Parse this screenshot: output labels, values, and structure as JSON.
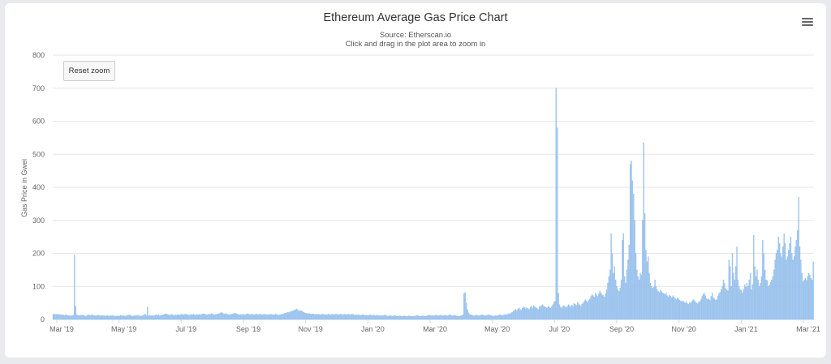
{
  "chart": {
    "title": "Ethereum Average Gas Price Chart",
    "subtitle": "Source: Etherscan.io",
    "hint": "Click and drag in the plot area to zoom in",
    "reset_zoom_label": "Reset zoom",
    "menu_icon": "hamburger-menu-icon"
  },
  "colors": {
    "bar": "#a9c8ec",
    "bar_edge": "#7cb5ec",
    "grid": "#e6e6e6",
    "axis": "#ccd6eb"
  },
  "chart_data": {
    "type": "bar",
    "title": "Ethereum Average Gas Price Chart",
    "subtitle": "Source: Etherscan.io",
    "ylabel": "Gas Price in Gwei",
    "xlabel": "",
    "ylim": [
      0,
      800
    ],
    "yticks": [
      0,
      100,
      200,
      300,
      400,
      500,
      600,
      700,
      800
    ],
    "xticks": [
      "Mar '19",
      "May '19",
      "Jul '19",
      "Sep '19",
      "Nov '19",
      "Jan '20",
      "Mar '20",
      "May '20",
      "Jul '20",
      "Sep '20",
      "Nov '20",
      "Jan '21",
      "Mar '21"
    ],
    "grid": true,
    "x_start": "2019-03-01",
    "series": [
      {
        "values": [
          15,
          17,
          15,
          16,
          14,
          16,
          14,
          15,
          13,
          14,
          12,
          14,
          13,
          12,
          12,
          11,
          11,
          12,
          13,
          195,
          40,
          14,
          13,
          12,
          12,
          13,
          12,
          13,
          11,
          10,
          12,
          13,
          14,
          12,
          13,
          14,
          12,
          12,
          11,
          12,
          13,
          12,
          11,
          12,
          11,
          12,
          11,
          10,
          12,
          11,
          10,
          12,
          11,
          12,
          10,
          11,
          10,
          10,
          11,
          10,
          12,
          11,
          12,
          11,
          10,
          11,
          12,
          13,
          14,
          12,
          11,
          10,
          11,
          12,
          11,
          13,
          12,
          11,
          10,
          11,
          12,
          14,
          16,
          12,
          38,
          11,
          12,
          11,
          12,
          11,
          12,
          13,
          14,
          12,
          15,
          11,
          12,
          13,
          14,
          15,
          16,
          17,
          15,
          14,
          13,
          14,
          15,
          13,
          12,
          14,
          13,
          15,
          14,
          13,
          16,
          15,
          14,
          15,
          16,
          15,
          14,
          13,
          14,
          15,
          14,
          16,
          14,
          13,
          15,
          14,
          15,
          14,
          15,
          16,
          17,
          16,
          15,
          14,
          15,
          16,
          15,
          18,
          16,
          15,
          14,
          15,
          16,
          17,
          18,
          20,
          21,
          19,
          17,
          16,
          18,
          16,
          15,
          14,
          15,
          16,
          17,
          18,
          19,
          18,
          16,
          15,
          14,
          15,
          14,
          16,
          15,
          14,
          16,
          17,
          16,
          15,
          14,
          16,
          15,
          14,
          15,
          16,
          15,
          14,
          16,
          15,
          14,
          15,
          16,
          15,
          14,
          15,
          14,
          15,
          16,
          14,
          15,
          14,
          16,
          15,
          14,
          13,
          14,
          15,
          16,
          17,
          18,
          19,
          20,
          22,
          21,
          23,
          24,
          25,
          26,
          28,
          30,
          32,
          28,
          25,
          27,
          26,
          24,
          22,
          20,
          19,
          18,
          17,
          18,
          17,
          16,
          17,
          16,
          15,
          16,
          15,
          16,
          15,
          14,
          15,
          16,
          15,
          14,
          15,
          14,
          16,
          15,
          14,
          15,
          16,
          14,
          15,
          16,
          15,
          14,
          15,
          16,
          15,
          14,
          15,
          16,
          14,
          15,
          16,
          15,
          14,
          16,
          15,
          14,
          13,
          14,
          13,
          14,
          13,
          12,
          13,
          14,
          13,
          12,
          13,
          12,
          13,
          14,
          13,
          12,
          13,
          12,
          11,
          12,
          13,
          12,
          11,
          12,
          11,
          12,
          13,
          12,
          11,
          10,
          11,
          12,
          11,
          10,
          11,
          12,
          11,
          10,
          9,
          10,
          11,
          10,
          9,
          10,
          11,
          10,
          9,
          10,
          11,
          10,
          9,
          10,
          9,
          10,
          11,
          12,
          11,
          10,
          9,
          10,
          11,
          10,
          9,
          10,
          11,
          12,
          13,
          12,
          11,
          12,
          11,
          12,
          13,
          12,
          11,
          12,
          13,
          12,
          11,
          12,
          13,
          12,
          11,
          12,
          14,
          13,
          12,
          11,
          12,
          13,
          11,
          10,
          9,
          10,
          11,
          12,
          14,
          78,
          82,
          50,
          30,
          20,
          16,
          14,
          13,
          12,
          11,
          12,
          13,
          12,
          11,
          12,
          13,
          14,
          13,
          12,
          11,
          12,
          13,
          14,
          13,
          12,
          11,
          10,
          11,
          12,
          11,
          12,
          13,
          14,
          13,
          12,
          13,
          14,
          15,
          14,
          16,
          18,
          17,
          20,
          22,
          25,
          28,
          30,
          26,
          32,
          35,
          30,
          28,
          34,
          38,
          36,
          32,
          35,
          33,
          30,
          36,
          40,
          35,
          42,
          38,
          36,
          34,
          30,
          38,
          40,
          42,
          45,
          40,
          38,
          36,
          35,
          40,
          37,
          34,
          38,
          45,
          52,
          55,
          700,
          580,
          80,
          45,
          38,
          35,
          40,
          42,
          38,
          36,
          40,
          45,
          42,
          38,
          44,
          40,
          48,
          46,
          42,
          52,
          48,
          44,
          40,
          46,
          50,
          55,
          60,
          56,
          52,
          58,
          62,
          70,
          75,
          72,
          68,
          80,
          74,
          70,
          78,
          86,
          80,
          75,
          72,
          68,
          78,
          90,
          110,
          130,
          150,
          260,
          200,
          140,
          160,
          120,
          100,
          90,
          85,
          95,
          120,
          240,
          260,
          130,
          110,
          150,
          180,
          225,
          470,
          480,
          420,
          380,
          300,
          200,
          150,
          130,
          120,
          140,
          135,
          300,
          535,
          320,
          210,
          175,
          190,
          140,
          110,
          100,
          95,
          98,
          120,
          100,
          90,
          85,
          82,
          88,
          84,
          80,
          78,
          75,
          80,
          72,
          68,
          74,
          70,
          66,
          72,
          68,
          64,
          60,
          65,
          62,
          58,
          56,
          54,
          56,
          52,
          50,
          54,
          48,
          46,
          52,
          50,
          55,
          60,
          58,
          54,
          50,
          48,
          52,
          55,
          60,
          70,
          76,
          80,
          72,
          64,
          60,
          62,
          58,
          70,
          80,
          66,
          62,
          58,
          60,
          70,
          78,
          82,
          90,
          100,
          120,
          110,
          94,
          90,
          86,
          180,
          160,
          100,
          200,
          140,
          120,
          160,
          220,
          120,
          100,
          90,
          88,
          80,
          92,
          105,
          98,
          110,
          100,
          120,
          140,
          90,
          106,
          255,
          160,
          130,
          150,
          120,
          100,
          110,
          130,
          240,
          200,
          150,
          120,
          118,
          100,
          105,
          112,
          120,
          130,
          150,
          180,
          200,
          210,
          250,
          230,
          200,
          190,
          220,
          260,
          230,
          180,
          190,
          210,
          230,
          250,
          200,
          180,
          190,
          220,
          240,
          270,
          370,
          220,
          180,
          140,
          115,
          120,
          125,
          118,
          130,
          140,
          135,
          125,
          120,
          175
        ]
      }
    ]
  }
}
